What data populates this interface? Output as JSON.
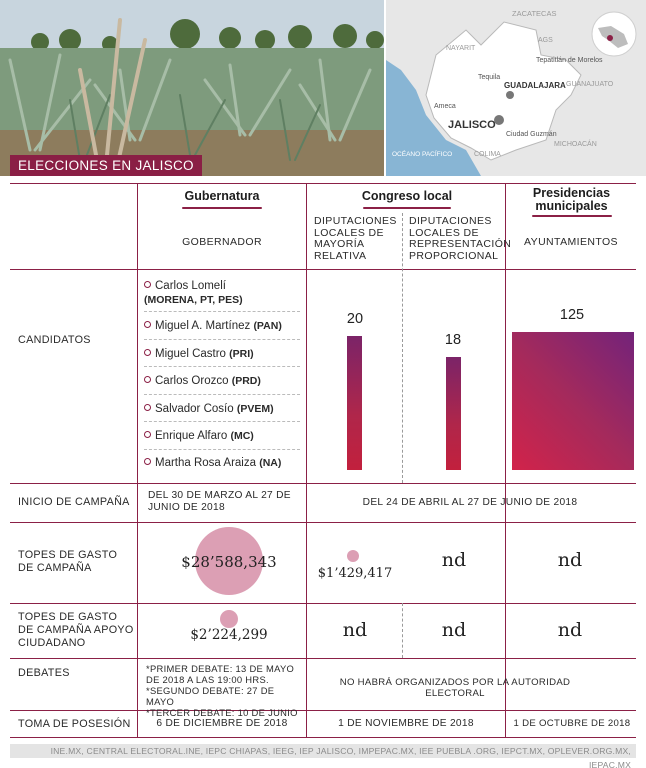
{
  "header": {
    "title": "ELECCIONES EN JALISCO",
    "map_labels": {
      "zacatecas": "ZACATECAS",
      "nayarit": "NAYARIT",
      "ags": "AGS",
      "tepatitlan": "Tepatitlán de Morelos",
      "tequila": "Tequila",
      "guadalajara": "GUADALAJARA",
      "guanajuato": "GUANAJUATO",
      "ameca": "Ameca",
      "jalisco": "JALISCO",
      "ciudad_guzman": "Ciudad Guzmán",
      "michoacan": "MICHOACÁN",
      "oceano": "OCÉANO PACÍFICO",
      "colima": "COLIMA"
    }
  },
  "columns": {
    "gubernatura": "Gubernatura",
    "congreso": "Congreso local",
    "presidencias": "Presidencias municipales",
    "gobernador": "GOBERNADOR",
    "mayoria": "DIPUTACIONES LOCALES DE MAYORÍA RELATIVA",
    "representacion": "DIPUTACIONES LOCALES DE REPRESENTACIÓN PROPORCIONAL",
    "ayuntamientos": "AYUNTAMIENTOS"
  },
  "rows": {
    "candidatos": "CANDIDATOS",
    "inicio": "INICIO DE CAMPAÑA",
    "topes": "TOPES DE GASTO DE CAMPAÑA",
    "topes_apoyo": "TOPES DE GASTO DE CAMPAÑA APOYO CIUDADANO",
    "debates": "DEBATES",
    "toma": "TOMA DE POSESIÓN"
  },
  "candidates": [
    {
      "name": "Carlos Lomelí",
      "party": "(MORENA, PT, PES)"
    },
    {
      "name": "Miguel A. Martínez",
      "party": "(PAN)"
    },
    {
      "name": "Miguel Castro",
      "party": "(PRI)"
    },
    {
      "name": "Carlos Orozco",
      "party": "(PRD)"
    },
    {
      "name": "Salvador Cosío",
      "party": "(PVEM)"
    },
    {
      "name": "Enrique Alfaro",
      "party": "(MC)"
    },
    {
      "name": "Martha Rosa Araiza",
      "party": "(NA)"
    }
  ],
  "counts": {
    "mayoria": 20,
    "representacion": 18,
    "ayuntamientos": 125
  },
  "inicio": {
    "gubernatura": "DEL 30 DE MARZO AL 27 DE JUNIO DE 2018",
    "resto": "DEL 24 DE ABRIL AL 27 DE JUNIO DE 2018"
  },
  "topes": {
    "gubernatura": "$28’588,343",
    "mayoria": "$1’429,417",
    "representacion": "nd",
    "ayuntamientos": "nd"
  },
  "topes_apoyo": {
    "gubernatura": "$2’224,299",
    "mayoria": "nd",
    "representacion": "nd",
    "ayuntamientos": "nd"
  },
  "debates": {
    "line1": "*PRIMER DEBATE: 13 DE MAYO DE 2018 A LAS 19:00 HRS.",
    "line2": "*SEGUNDO DEBATE: 27 DE MAYO",
    "line3": "*TERCER DEBATE: 10 DE JUNIO",
    "resto": "NO HABRÁ ORGANIZADOS POR LA AUTORIDAD ELECTORAL"
  },
  "toma": {
    "gubernatura": "6 DE DICIEMBRE DE 2018",
    "congreso": "1 DE NOVIEMBRE DE 2018",
    "ayuntamientos": "1 DE OCTUBRE DE 2018"
  },
  "source": "INE.MX, CENTRAL ELECTORAL.INE, IEPC CHIAPAS, IEEG, IEP JALISCO, IMPEPAC.MX, IEE PUEBLA .ORG, IEPCT.MX, OPLEVER.ORG.MX, IEPAC.MX"
}
